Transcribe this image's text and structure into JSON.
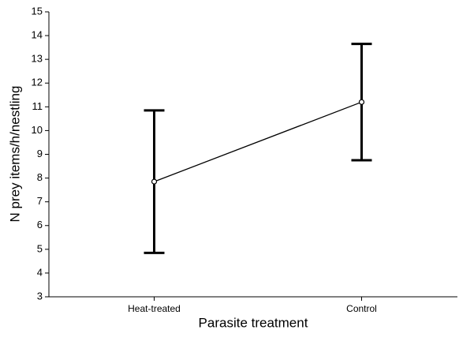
{
  "chart_data": {
    "type": "line",
    "categories": [
      "Heat-treated",
      "Control"
    ],
    "values": [
      7.85,
      11.2
    ],
    "errors": [
      3.0,
      2.45
    ],
    "color": "#000000",
    "xlabel": "Parasite treatment",
    "ylabel": "N prey items/h/nestling",
    "ylim": [
      3,
      15
    ],
    "yticks": [
      3,
      4,
      5,
      6,
      7,
      8,
      9,
      10,
      11,
      12,
      13,
      14,
      15
    ]
  }
}
